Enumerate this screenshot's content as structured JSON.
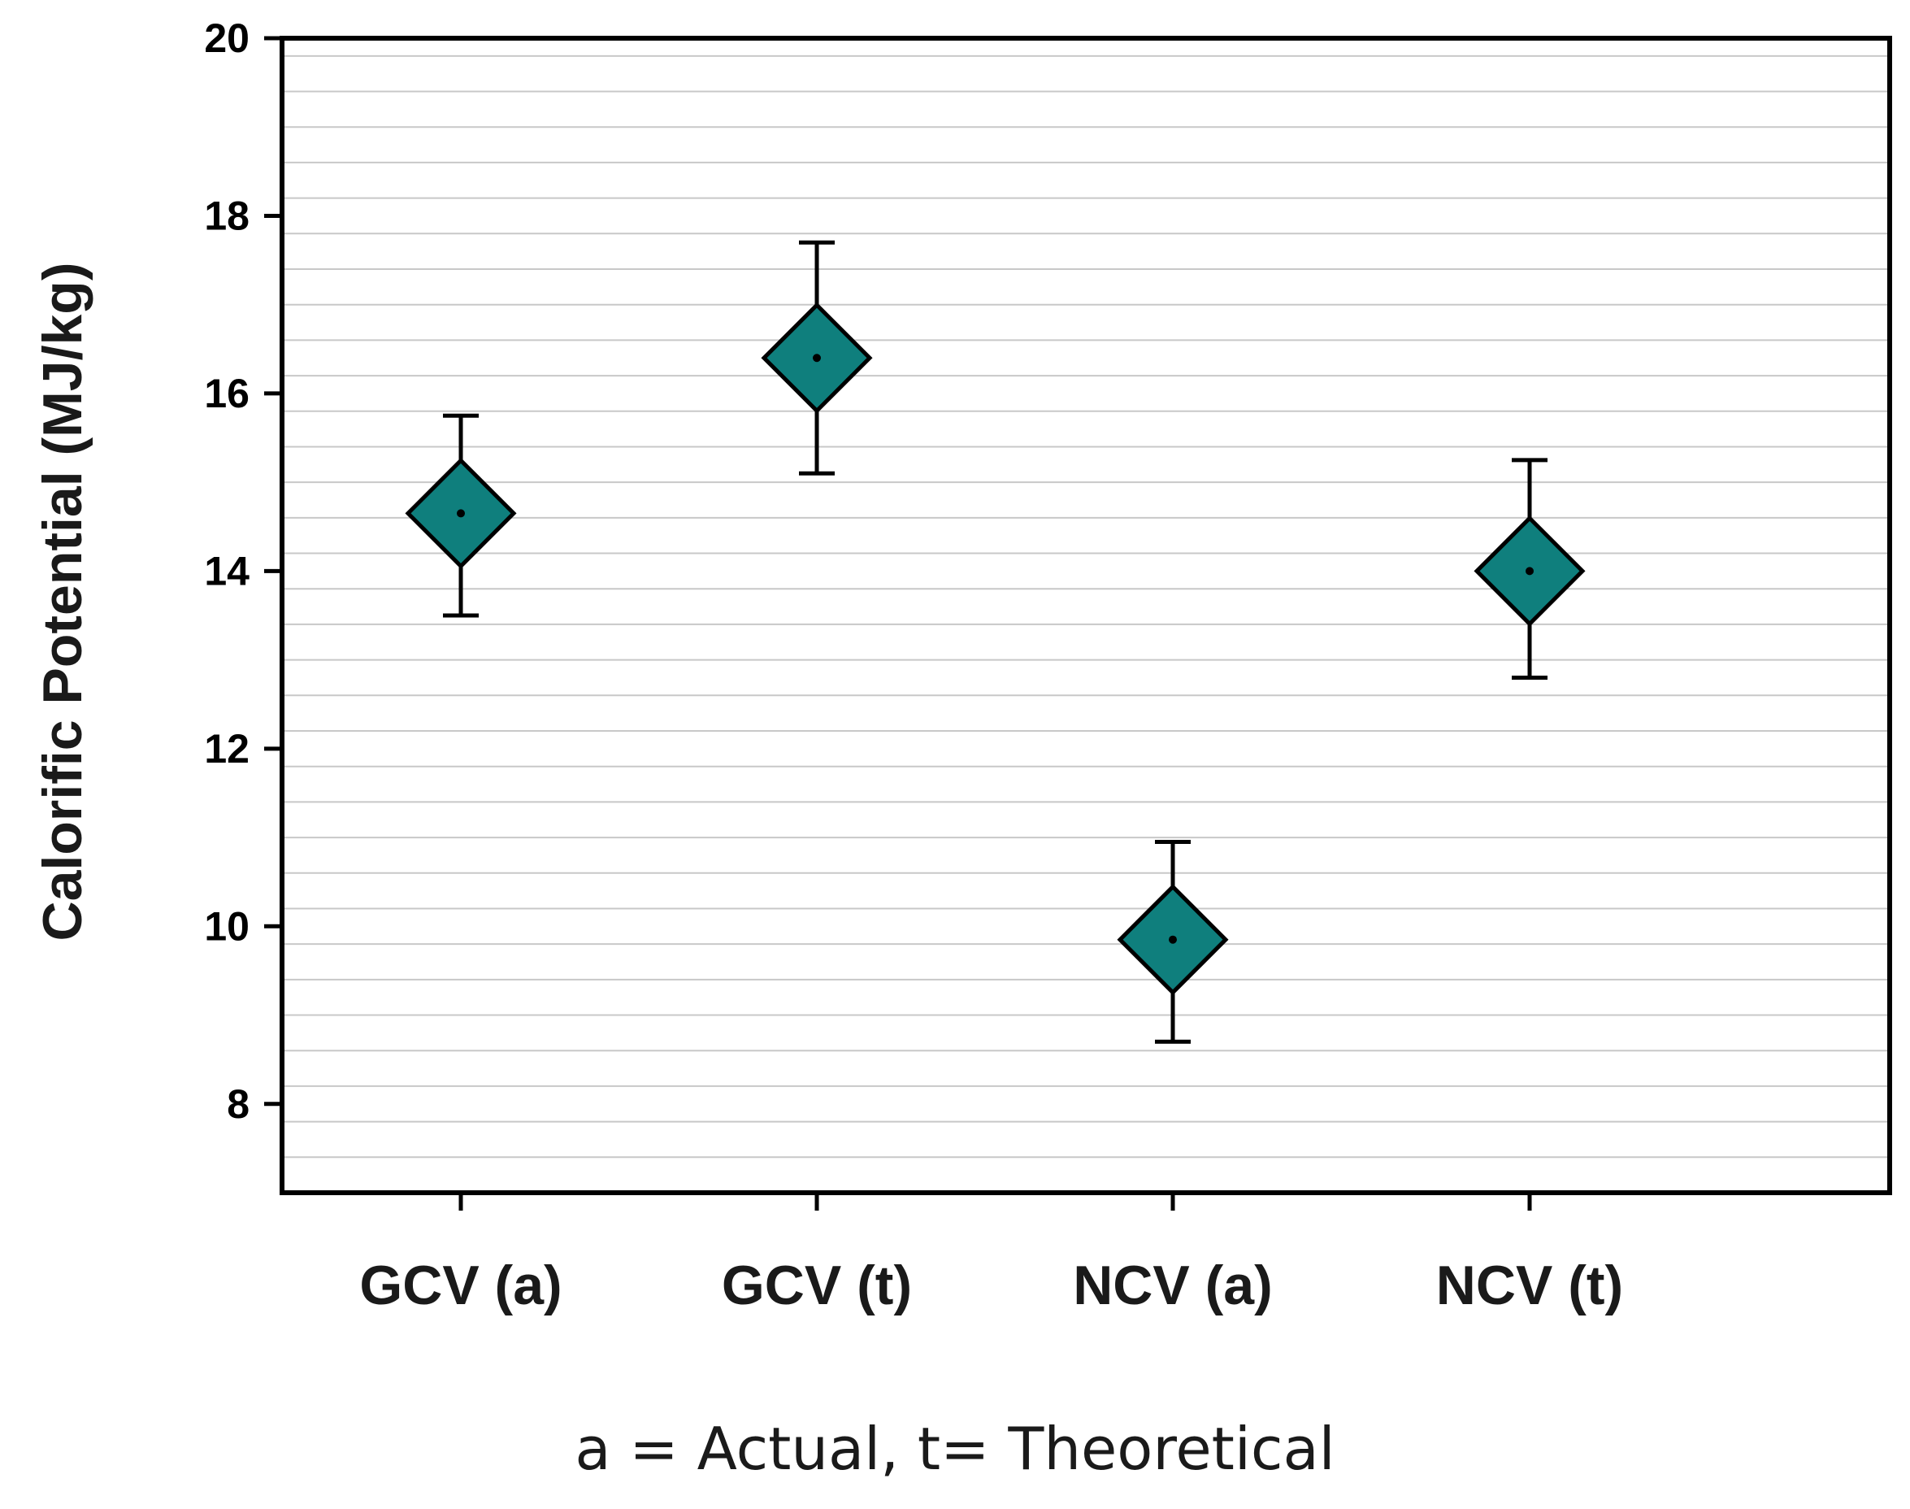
{
  "chart_data": {
    "type": "scatter",
    "title": "",
    "xlabel": "",
    "ylabel": "Calorific Potential (MJ/kg)",
    "ylim": [
      7,
      20
    ],
    "yticks": [
      8,
      10,
      12,
      14,
      16,
      18,
      20
    ],
    "minor_grid_step": 0.4,
    "grid": true,
    "categories": [
      "GCV (a)",
      "GCV (t)",
      "NCV (a)",
      "NCV (t)"
    ],
    "values": [
      14.65,
      16.4,
      9.85,
      14.0
    ],
    "error_low": [
      13.5,
      15.1,
      8.7,
      12.8
    ],
    "error_high": [
      15.75,
      17.7,
      10.95,
      15.25
    ],
    "marker": "diamond",
    "marker_color": "#0f7f7d",
    "footnote": "a = Actual, t= Theoretical"
  }
}
